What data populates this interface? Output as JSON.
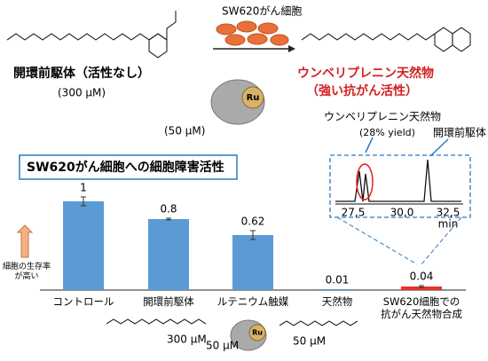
{
  "scheme": {
    "cells_label": "SW620がん細胞",
    "precursor_label": "開環前駆体（活性なし）",
    "precursor_conc": "(300 μM)",
    "product_label": "ウンベリプレニン天然物",
    "product_note": "（強い抗がん活性）",
    "catalyst_metal": "Ru",
    "catalyst_conc": "(50 μM)"
  },
  "chromatogram": {
    "product_label": "ウンベリプレニン天然物",
    "yield": "(28% yield)",
    "precursor_label": "開環前駆体",
    "ticks": [
      "27,5",
      "30,0",
      "32,5"
    ],
    "unit": "min"
  },
  "chart_data": {
    "type": "bar",
    "title": "SW620がん細胞への細胞障害活性",
    "categories": [
      "コントロール",
      "開環前駆体",
      "ルテニウム触媒",
      "天然物",
      "SW620細胞での\n抗がん天然物合成"
    ],
    "values": [
      1,
      0.8,
      0.62,
      0.01,
      0.04
    ],
    "errors": [
      0.05,
      0.01,
      0.05,
      0,
      0.01
    ],
    "colors": [
      "#5b9bd5",
      "#5b9bd5",
      "#5b9bd5",
      "#5b9bd5",
      "#e8312a"
    ],
    "ylim": [
      0,
      1.2
    ],
    "y_axis_label": "細胞の生存率\nが高い",
    "concentrations": [
      "300 μM",
      "50 μM",
      "50 μM"
    ],
    "catalyst_metal": "Ru"
  }
}
